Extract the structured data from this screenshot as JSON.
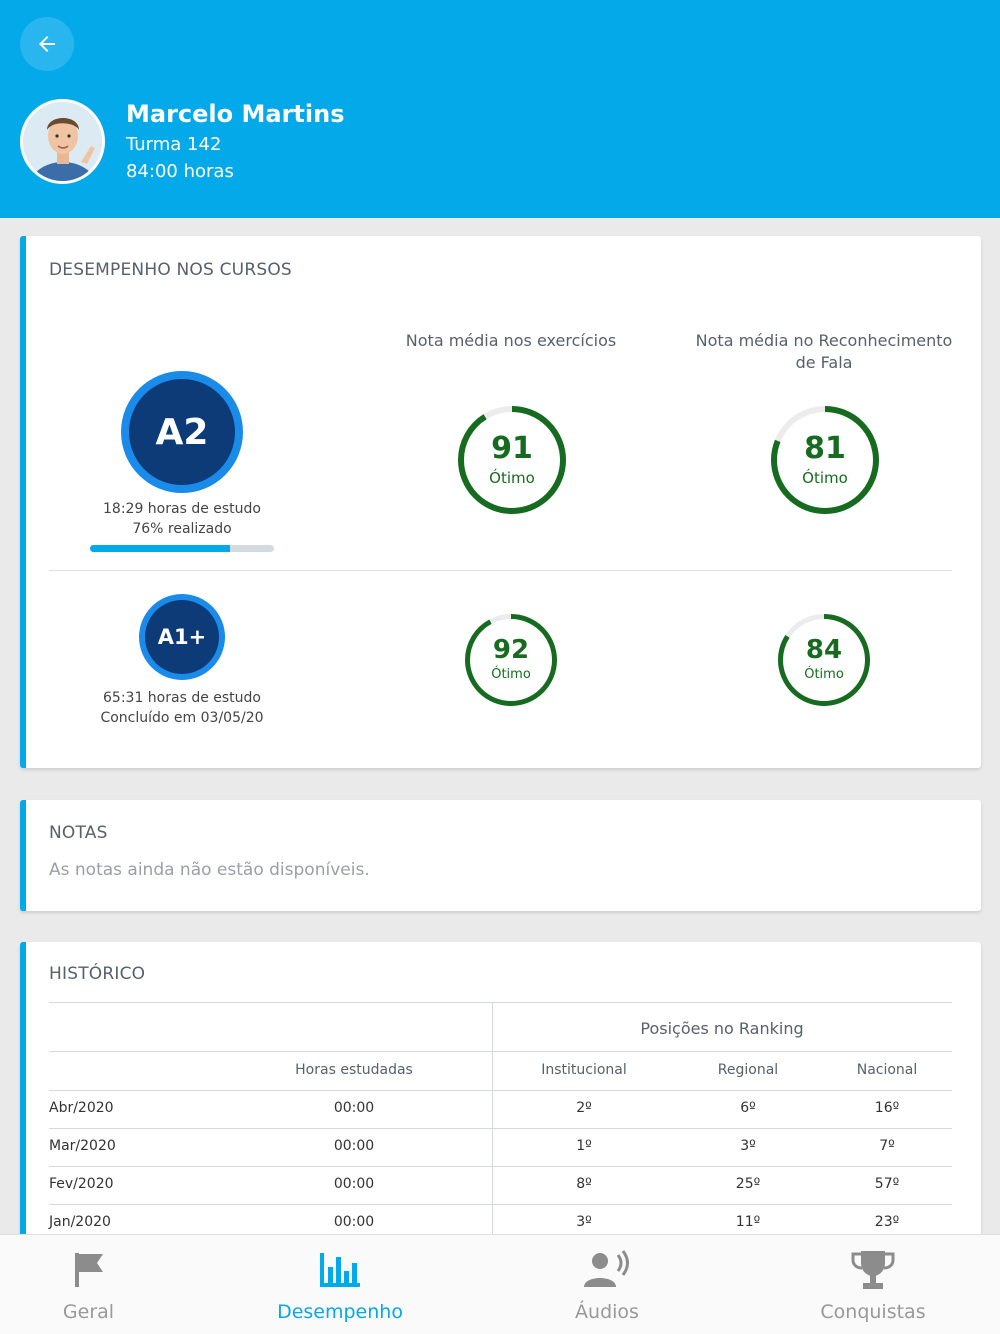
{
  "header": {
    "name": "Marcelo Martins",
    "class": "Turma 142",
    "hours": "84:00 horas"
  },
  "performance": {
    "title": "DESEMPENHO NOS CURSOS",
    "col_exercises": "Nota média nos exercícios",
    "col_speech": "Nota média no Reconhecimento de Fala",
    "courses": [
      {
        "level": "A2",
        "hours": "18:29 horas de estudo",
        "status": "76% realizado",
        "progress": 0.76,
        "exercise_score": "91",
        "exercise_label": "Ótimo",
        "exercise_pct": 0.91,
        "speech_score": "81",
        "speech_label": "Ótimo",
        "speech_pct": 0.81
      },
      {
        "level": "A1+",
        "hours": "65:31 horas de estudo",
        "status": "Concluído em 03/05/20",
        "exercise_score": "92",
        "exercise_label": "Ótimo",
        "exercise_pct": 0.92,
        "speech_score": "84",
        "speech_label": "Ótimo",
        "speech_pct": 0.84
      }
    ]
  },
  "notes": {
    "title": "NOTAS",
    "empty": "As notas ainda não estão disponíveis."
  },
  "history": {
    "title": "HISTÓRICO",
    "ranking_header": "Posições no Ranking",
    "columns": [
      "Horas estudadas",
      "Institucional",
      "Regional",
      "Nacional"
    ],
    "rows": [
      {
        "month": "Abr/2020",
        "hours": "00:00",
        "inst": "2º",
        "reg": "6º",
        "nac": "16º"
      },
      {
        "month": "Mar/2020",
        "hours": "00:00",
        "inst": "1º",
        "reg": "3º",
        "nac": "7º"
      },
      {
        "month": "Fev/2020",
        "hours": "00:00",
        "inst": "8º",
        "reg": "25º",
        "nac": "57º"
      },
      {
        "month": "Jan/2020",
        "hours": "00:00",
        "inst": "3º",
        "reg": "11º",
        "nac": "23º"
      }
    ]
  },
  "nav": {
    "items": [
      {
        "label": "Geral",
        "icon": "flag-icon"
      },
      {
        "label": "Desempenho",
        "icon": "bar-chart-icon",
        "active": true
      },
      {
        "label": "Áudios",
        "icon": "speaking-person-icon"
      },
      {
        "label": "Conquistas",
        "icon": "trophy-icon"
      }
    ]
  },
  "colors": {
    "primary": "#04a9ea",
    "score_green": "#176b20",
    "badge_dark": "#0d3b78"
  }
}
